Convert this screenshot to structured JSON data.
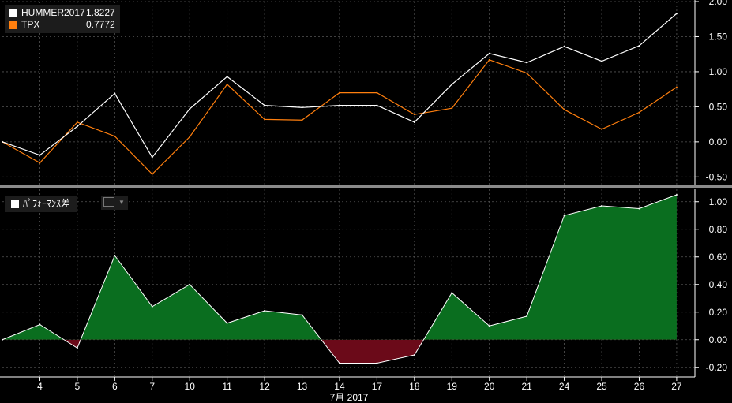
{
  "top_legend": [
    {
      "name": "HUMMER2017",
      "value": "1.8227",
      "color": "#ffffff"
    },
    {
      "name": "TPX",
      "value": "0.7772",
      "color": "#ff7f0e"
    }
  ],
  "bottom_legend": {
    "label": "ﾊﾟﾌｫｰﾏﾝｽ差",
    "color": "#ffffff"
  },
  "colors": {
    "positive_fill": "#0a6e1f",
    "negative_fill": "#6b0a19",
    "grid": "#555555",
    "separator": "#8a8a8a"
  },
  "chart_data": [
    {
      "type": "line",
      "x": [
        "3",
        "4",
        "5",
        "6",
        "7",
        "10",
        "11",
        "12",
        "13",
        "14",
        "17",
        "18",
        "19",
        "20",
        "21",
        "24",
        "25",
        "26",
        "27"
      ],
      "series": [
        {
          "name": "HUMMER2017",
          "color": "#ffffff",
          "values": [
            0.0,
            -0.19,
            0.22,
            0.69,
            -0.22,
            0.47,
            0.93,
            0.52,
            0.49,
            0.52,
            0.52,
            0.28,
            0.82,
            1.26,
            1.13,
            1.36,
            1.15,
            1.37,
            1.83
          ]
        },
        {
          "name": "TPX",
          "color": "#ff7f0e",
          "values": [
            0.0,
            -0.3,
            0.28,
            0.08,
            -0.46,
            0.07,
            0.82,
            0.32,
            0.31,
            0.7,
            0.7,
            0.39,
            0.48,
            1.17,
            0.98,
            0.46,
            0.18,
            0.42,
            0.78
          ]
        }
      ],
      "ylim": [
        -0.62,
        2.0
      ],
      "yticks": [
        "2.00",
        "1.50",
        "1.00",
        "0.50",
        "0.00",
        "-0.50"
      ],
      "ytick_values": [
        2.0,
        1.5,
        1.0,
        0.5,
        0.0,
        -0.5
      ],
      "grid": true
    },
    {
      "type": "area",
      "x": [
        "3",
        "4",
        "5",
        "6",
        "7",
        "10",
        "11",
        "12",
        "13",
        "14",
        "17",
        "18",
        "19",
        "20",
        "21",
        "24",
        "25",
        "26",
        "27"
      ],
      "series": [
        {
          "name": "ﾊﾟﾌｫｰﾏﾝｽ差",
          "color": "#ffffff",
          "values": [
            0.0,
            0.11,
            -0.06,
            0.61,
            0.24,
            0.4,
            0.12,
            0.21,
            0.18,
            -0.17,
            -0.17,
            -0.11,
            0.34,
            0.1,
            0.17,
            0.9,
            0.97,
            0.95,
            1.05
          ]
        }
      ],
      "ylim": [
        -0.27,
        1.09
      ],
      "yticks": [
        "1.00",
        "0.80",
        "0.60",
        "0.40",
        "0.20",
        "0.00",
        "-0.20"
      ],
      "ytick_values": [
        1.0,
        0.8,
        0.6,
        0.4,
        0.2,
        0.0,
        -0.2
      ],
      "grid": true
    }
  ],
  "x_axis": {
    "ticks": [
      "4",
      "5",
      "6",
      "7",
      "10",
      "11",
      "12",
      "13",
      "14",
      "17",
      "18",
      "19",
      "20",
      "21",
      "24",
      "25",
      "26",
      "27"
    ],
    "label": "7月 2017"
  }
}
